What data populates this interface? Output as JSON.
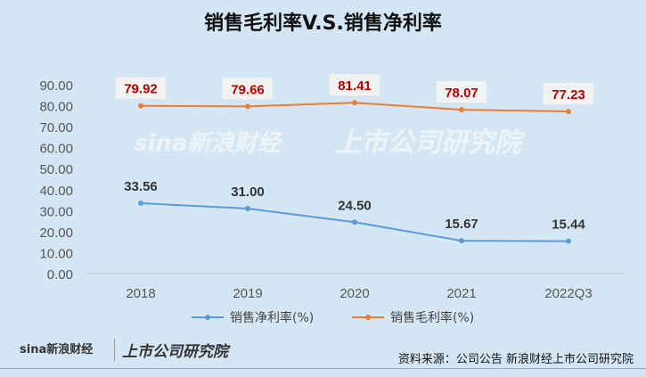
{
  "chart_data": {
    "type": "line",
    "title": "销售毛利率V.S.销售净利率",
    "categories": [
      "2018",
      "2019",
      "2020",
      "2021",
      "2022Q3"
    ],
    "series": [
      {
        "name": "销售净利率(%)",
        "values": [
          33.56,
          31.0,
          24.5,
          15.67,
          15.44
        ],
        "color": "#5b9bd5",
        "label_color": "#333333"
      },
      {
        "name": "销售毛利率(%)",
        "values": [
          79.92,
          79.66,
          81.41,
          78.07,
          77.23
        ],
        "color": "#ed7d31",
        "label_color": "#c00000"
      }
    ],
    "ylim": [
      0,
      90
    ],
    "yticks": [
      "0.00",
      "10.00",
      "20.00",
      "30.00",
      "40.00",
      "50.00",
      "60.00",
      "70.00",
      "80.00",
      "90.00"
    ],
    "legend": "bottom",
    "grid": false
  },
  "watermark": {
    "brand": "sina新浪财经",
    "institute": "上市公司研究院"
  },
  "footer": {
    "logo": "sina新浪财经",
    "institute": "上市公司研究院",
    "source": "资料来源：公司公告 新浪财经上市公司研究院"
  }
}
